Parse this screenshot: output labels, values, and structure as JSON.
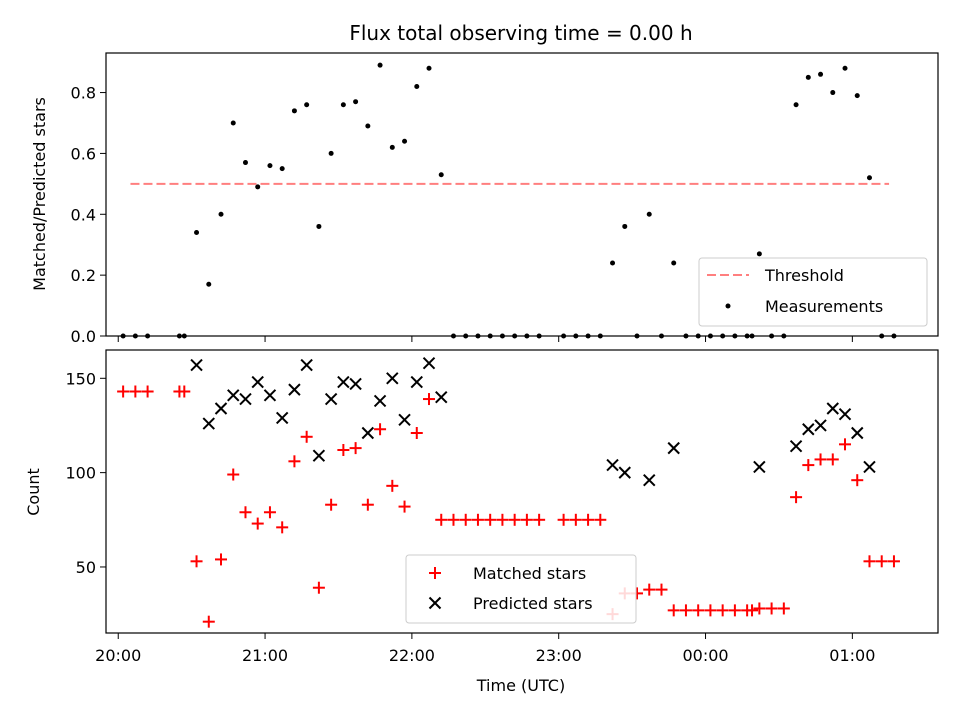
{
  "chart_data": [
    {
      "type": "scatter",
      "title": "Flux total observing time = 0.00 h",
      "xlabel": "",
      "ylabel": "Matched/Predicted stars",
      "xlim": [
        "19:55",
        "01:35"
      ],
      "ylim": [
        0,
        0.93
      ],
      "yticks": [
        0.0,
        0.2,
        0.4,
        0.6,
        0.8
      ],
      "grid": false,
      "legend_position": "lower-right",
      "threshold": {
        "name": "Threshold",
        "y": 0.5,
        "x_start": "20:05",
        "x_end": "01:15",
        "color": "#ff7f7f",
        "style": "dashed"
      },
      "series": [
        {
          "name": "Measurements",
          "color": "#000000",
          "marker": "dot",
          "points": [
            [
              "20:02",
              0
            ],
            [
              "20:07",
              0
            ],
            [
              "20:12",
              0
            ],
            [
              "20:25",
              0
            ],
            [
              "20:27",
              0
            ],
            [
              "20:32",
              0.34
            ],
            [
              "20:37",
              0.17
            ],
            [
              "20:42",
              0.4
            ],
            [
              "20:47",
              0.7
            ],
            [
              "20:52",
              0.57
            ],
            [
              "20:57",
              0.49
            ],
            [
              "21:02",
              0.56
            ],
            [
              "21:07",
              0.55
            ],
            [
              "21:12",
              0.74
            ],
            [
              "21:17",
              0.76
            ],
            [
              "21:22",
              0.36
            ],
            [
              "21:27",
              0.6
            ],
            [
              "21:32",
              0.76
            ],
            [
              "21:37",
              0.77
            ],
            [
              "21:42",
              0.69
            ],
            [
              "21:47",
              0.89
            ],
            [
              "21:52",
              0.62
            ],
            [
              "21:57",
              0.64
            ],
            [
              "22:02",
              0.82
            ],
            [
              "22:07",
              0.88
            ],
            [
              "22:12",
              0.53
            ],
            [
              "22:17",
              0
            ],
            [
              "22:22",
              0
            ],
            [
              "22:27",
              0
            ],
            [
              "22:32",
              0
            ],
            [
              "22:37",
              0
            ],
            [
              "22:42",
              0
            ],
            [
              "22:47",
              0
            ],
            [
              "22:52",
              0
            ],
            [
              "23:02",
              0
            ],
            [
              "23:07",
              0
            ],
            [
              "23:12",
              0
            ],
            [
              "23:17",
              0
            ],
            [
              "23:22",
              0.24
            ],
            [
              "23:27",
              0.36
            ],
            [
              "23:32",
              0
            ],
            [
              "23:37",
              0.4
            ],
            [
              "23:42",
              0
            ],
            [
              "23:47",
              0.24
            ],
            [
              "23:52",
              0
            ],
            [
              "23:57",
              0
            ],
            [
              "00:02",
              0
            ],
            [
              "00:07",
              0
            ],
            [
              "00:12",
              0
            ],
            [
              "00:17",
              0
            ],
            [
              "00:19",
              0
            ],
            [
              "00:22",
              0.27
            ],
            [
              "00:27",
              0
            ],
            [
              "00:32",
              0
            ],
            [
              "00:37",
              0.76
            ],
            [
              "00:42",
              0.85
            ],
            [
              "00:47",
              0.86
            ],
            [
              "00:52",
              0.8
            ],
            [
              "00:57",
              0.88
            ],
            [
              "01:02",
              0.79
            ],
            [
              "01:07",
              0.52
            ],
            [
              "01:12",
              0
            ],
            [
              "01:17",
              0
            ]
          ]
        }
      ]
    },
    {
      "type": "scatter",
      "title": "",
      "xlabel": "Time (UTC)",
      "ylabel": "Count",
      "xlim": [
        "19:55",
        "01:35"
      ],
      "ylim": [
        15,
        165
      ],
      "yticks": [
        50,
        100,
        150
      ],
      "xticks": [
        "20:00",
        "21:00",
        "22:00",
        "23:00",
        "00:00",
        "01:00"
      ],
      "grid": false,
      "legend_position": "lower-center",
      "series": [
        {
          "name": "Matched stars",
          "color": "#ff0000",
          "marker": "plus",
          "points": [
            [
              "20:02",
              143
            ],
            [
              "20:07",
              143
            ],
            [
              "20:12",
              143
            ],
            [
              "20:25",
              143
            ],
            [
              "20:27",
              143
            ],
            [
              "20:32",
              53
            ],
            [
              "20:37",
              21
            ],
            [
              "20:42",
              54
            ],
            [
              "20:47",
              99
            ],
            [
              "20:52",
              79
            ],
            [
              "20:57",
              73
            ],
            [
              "21:02",
              79
            ],
            [
              "21:07",
              71
            ],
            [
              "21:12",
              106
            ],
            [
              "21:17",
              119
            ],
            [
              "21:22",
              39
            ],
            [
              "21:27",
              83
            ],
            [
              "21:32",
              112
            ],
            [
              "21:37",
              113
            ],
            [
              "21:42",
              83
            ],
            [
              "21:47",
              123
            ],
            [
              "21:52",
              93
            ],
            [
              "21:57",
              82
            ],
            [
              "22:02",
              121
            ],
            [
              "22:07",
              139
            ],
            [
              "22:12",
              75
            ],
            [
              "22:17",
              75
            ],
            [
              "22:22",
              75
            ],
            [
              "22:27",
              75
            ],
            [
              "22:32",
              75
            ],
            [
              "22:37",
              75
            ],
            [
              "22:42",
              75
            ],
            [
              "22:47",
              75
            ],
            [
              "22:52",
              75
            ],
            [
              "23:02",
              75
            ],
            [
              "23:07",
              75
            ],
            [
              "23:12",
              75
            ],
            [
              "23:17",
              75
            ],
            [
              "23:22",
              25
            ],
            [
              "23:27",
              36
            ],
            [
              "23:32",
              36
            ],
            [
              "23:37",
              38
            ],
            [
              "23:42",
              38
            ],
            [
              "23:47",
              27
            ],
            [
              "23:52",
              27
            ],
            [
              "23:57",
              27
            ],
            [
              "00:02",
              27
            ],
            [
              "00:07",
              27
            ],
            [
              "00:12",
              27
            ],
            [
              "00:17",
              27
            ],
            [
              "00:19",
              27
            ],
            [
              "00:22",
              28
            ],
            [
              "00:27",
              28
            ],
            [
              "00:32",
              28
            ],
            [
              "00:37",
              87
            ],
            [
              "00:42",
              104
            ],
            [
              "00:47",
              107
            ],
            [
              "00:52",
              107
            ],
            [
              "00:57",
              115
            ],
            [
              "01:02",
              96
            ],
            [
              "01:07",
              53
            ],
            [
              "01:12",
              53
            ],
            [
              "01:17",
              53
            ]
          ]
        },
        {
          "name": "Predicted stars",
          "color": "#000000",
          "marker": "x",
          "points": [
            [
              "20:32",
              157
            ],
            [
              "20:37",
              126
            ],
            [
              "20:42",
              134
            ],
            [
              "20:47",
              141
            ],
            [
              "20:52",
              139
            ],
            [
              "20:57",
              148
            ],
            [
              "21:02",
              141
            ],
            [
              "21:07",
              129
            ],
            [
              "21:12",
              144
            ],
            [
              "21:17",
              157
            ],
            [
              "21:22",
              109
            ],
            [
              "21:27",
              139
            ],
            [
              "21:32",
              148
            ],
            [
              "21:37",
              147
            ],
            [
              "21:42",
              121
            ],
            [
              "21:47",
              138
            ],
            [
              "21:52",
              150
            ],
            [
              "21:57",
              128
            ],
            [
              "22:02",
              148
            ],
            [
              "22:07",
              158
            ],
            [
              "22:12",
              140
            ],
            [
              "23:22",
              104
            ],
            [
              "23:27",
              100
            ],
            [
              "23:37",
              96
            ],
            [
              "23:47",
              113
            ],
            [
              "00:22",
              103
            ],
            [
              "00:37",
              114
            ],
            [
              "00:42",
              123
            ],
            [
              "00:47",
              125
            ],
            [
              "00:52",
              134
            ],
            [
              "00:57",
              131
            ],
            [
              "01:02",
              121
            ],
            [
              "01:07",
              103
            ]
          ]
        }
      ]
    }
  ]
}
